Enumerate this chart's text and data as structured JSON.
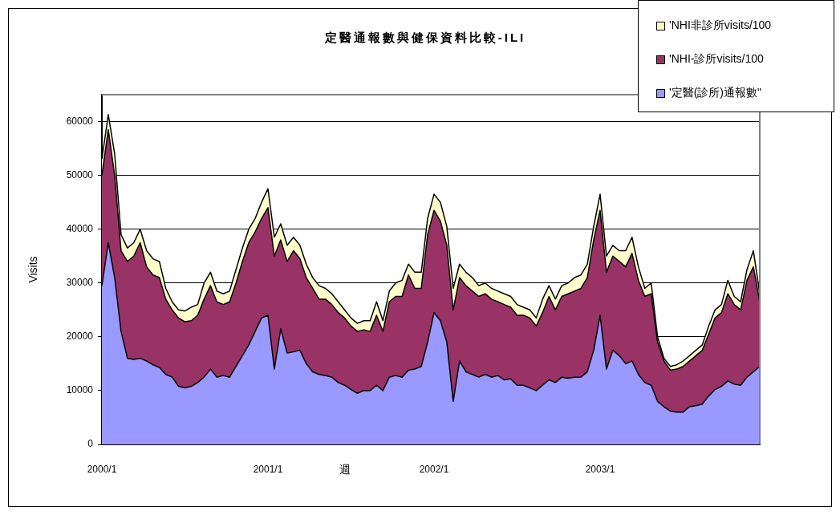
{
  "chart_data": {
    "type": "area",
    "title": "定醫通報數與健保資料比較-ILI",
    "xlabel": "週",
    "ylabel": "Visits",
    "stacked": true,
    "grid": "y",
    "legend": "top right",
    "ylim": [
      0,
      65000
    ],
    "yticks": [
      0,
      10000,
      20000,
      30000,
      40000,
      50000,
      60000
    ],
    "categories": [
      "2000/1",
      null,
      null,
      null,
      null,
      null,
      null,
      null,
      null,
      null,
      null,
      null,
      null,
      null,
      null,
      null,
      null,
      null,
      null,
      null,
      null,
      null,
      null,
      null,
      null,
      null,
      "2001/1",
      null,
      null,
      null,
      null,
      null,
      null,
      null,
      null,
      null,
      null,
      null,
      null,
      null,
      null,
      null,
      null,
      null,
      null,
      null,
      null,
      null,
      null,
      null,
      null,
      null,
      "2002/1",
      null,
      null,
      null,
      null,
      null,
      null,
      null,
      null,
      null,
      null,
      null,
      null,
      null,
      null,
      null,
      null,
      null,
      null,
      null,
      null,
      null,
      null,
      null,
      null,
      null,
      "2003/1",
      null,
      null,
      null,
      null,
      null,
      null,
      null,
      null,
      null,
      null,
      null,
      null,
      null,
      null,
      null,
      null,
      null,
      null,
      null,
      null,
      null,
      null,
      null,
      null,
      null
    ],
    "series": [
      {
        "name": "'定醫(診所)通報數\"",
        "color": "#9999ff",
        "values": [
          29500,
          37500,
          31000,
          21000,
          16000,
          15800,
          16000,
          15500,
          14800,
          14300,
          13000,
          12500,
          10800,
          10500,
          10800,
          11500,
          12500,
          14000,
          12500,
          12800,
          12500,
          14500,
          16500,
          18500,
          21000,
          23500,
          24000,
          14000,
          21500,
          17000,
          17200,
          17500,
          15000,
          13500,
          13000,
          12800,
          12500,
          11500,
          11000,
          10200,
          9500,
          10000,
          10000,
          11000,
          10000,
          12500,
          12800,
          12500,
          13800,
          14000,
          14500,
          19000,
          24500,
          23000,
          19000,
          8000,
          15500,
          13500,
          13000,
          12500,
          13000,
          12500,
          12800,
          12000,
          12200,
          11000,
          11000,
          10500,
          10000,
          11000,
          12000,
          11500,
          12500,
          12300,
          12500,
          12500,
          13500,
          17500,
          24000,
          14000,
          17500,
          16500,
          15000,
          15500,
          13000,
          11500,
          11000,
          8000,
          7000,
          6200,
          6000,
          6000,
          7000,
          7200,
          7500,
          9000,
          10200,
          10800,
          11800,
          11200,
          11000,
          12500,
          13500,
          14500
        ]
      },
      {
        "name": "'NHI-診所visits/100",
        "color": "#993366",
        "values": [
          20500,
          21000,
          19000,
          15000,
          18000,
          19200,
          21500,
          17500,
          16700,
          16700,
          14000,
          12500,
          12700,
          12300,
          12200,
          12500,
          14500,
          15500,
          14000,
          13200,
          14000,
          15500,
          17500,
          19000,
          18500,
          18500,
          20000,
          21000,
          16500,
          17000,
          18800,
          17000,
          16000,
          15500,
          14000,
          14200,
          13500,
          13000,
          12500,
          11800,
          11500,
          11300,
          11000,
          13000,
          11000,
          14000,
          14700,
          15000,
          17700,
          15000,
          14500,
          20000,
          19000,
          18500,
          18000,
          17000,
          15500,
          16000,
          15500,
          15000,
          15000,
          14500,
          13700,
          14000,
          13300,
          13000,
          13000,
          13000,
          12000,
          13500,
          15500,
          13500,
          15000,
          15700,
          16000,
          16500,
          17500,
          20500,
          19500,
          18000,
          17500,
          17500,
          18000,
          20000,
          17500,
          16000,
          17000,
          11000,
          8500,
          7600,
          8000,
          8500,
          8500,
          9300,
          10000,
          11500,
          13300,
          13700,
          16200,
          14800,
          14000,
          18000,
          19500,
          12000
        ]
      },
      {
        "name": "'NHI非診所visits/100",
        "color": "#ffffcc",
        "values": [
          3000,
          2800,
          4000,
          3000,
          2500,
          2500,
          2500,
          3000,
          3000,
          3000,
          2000,
          1500,
          1500,
          2000,
          2500,
          2000,
          3000,
          2500,
          2000,
          2000,
          2000,
          2500,
          2500,
          2500,
          2500,
          3000,
          3500,
          3500,
          3000,
          3000,
          2500,
          2500,
          2500,
          2000,
          2500,
          2000,
          2000,
          2000,
          1500,
          1500,
          1500,
          1700,
          2000,
          2500,
          2000,
          2000,
          2500,
          3000,
          2000,
          3000,
          3000,
          3000,
          3000,
          3500,
          3500,
          4000,
          2500,
          2500,
          2500,
          2000,
          2000,
          2000,
          2000,
          2000,
          2000,
          2000,
          1500,
          1500,
          1500,
          2500,
          2000,
          2000,
          2000,
          2000,
          2500,
          2500,
          2500,
          2500,
          3000,
          3000,
          2000,
          2000,
          3000,
          3000,
          2500,
          1500,
          2000,
          1000,
          500,
          700,
          800,
          1000,
          1000,
          1000,
          1000,
          1500,
          1500,
          1500,
          2500,
          1500,
          1500,
          2000,
          3000,
          1500
        ]
      }
    ]
  }
}
